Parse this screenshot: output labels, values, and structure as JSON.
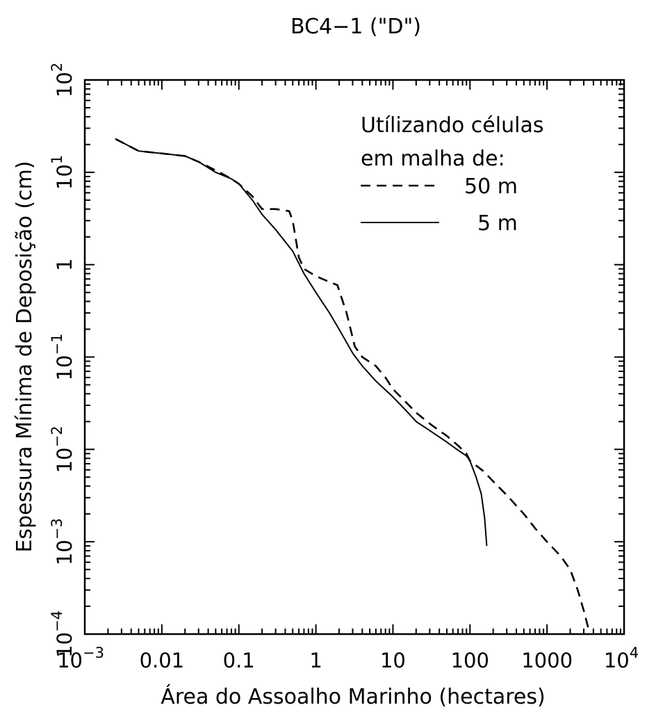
{
  "chart_data": {
    "type": "line",
    "title": "BC4−1 (\"D\")",
    "xlabel": "Área do Assoalho Marinho (hectares)",
    "ylabel": "Espessura Mínima de Deposição (cm)",
    "x_scale": "log",
    "y_scale": "log",
    "xlim": [
      0.001,
      10000
    ],
    "ylim": [
      0.0001,
      100
    ],
    "grid": false,
    "legend_position": "top-right",
    "legend_header": [
      "Utílizando células",
      "em malha de:"
    ],
    "x_ticks": [
      {
        "value": 0.001,
        "base": "10",
        "exp": "−3"
      },
      {
        "value": 0.01,
        "label": "0.01"
      },
      {
        "value": 0.1,
        "label": "0.1"
      },
      {
        "value": 1,
        "label": "1"
      },
      {
        "value": 10,
        "label": "10"
      },
      {
        "value": 100,
        "label": "100"
      },
      {
        "value": 1000,
        "label": "1000"
      },
      {
        "value": 10000,
        "base": "10",
        "exp": "4"
      }
    ],
    "y_ticks": [
      {
        "value": 0.0001,
        "base": "10",
        "exp": "−4"
      },
      {
        "value": 0.001,
        "base": "10",
        "exp": "−3"
      },
      {
        "value": 0.01,
        "base": "10",
        "exp": "−2"
      },
      {
        "value": 0.1,
        "base": "10",
        "exp": "−1"
      },
      {
        "value": 1,
        "label": "1"
      },
      {
        "value": 10,
        "base": "10",
        "exp": "1"
      },
      {
        "value": 100,
        "base": "10",
        "exp": "2"
      }
    ],
    "series": [
      {
        "name": "50 m",
        "style": "dashed",
        "x": [
          0.0025,
          0.005,
          0.01,
          0.02,
          0.03,
          0.05,
          0.08,
          0.1,
          0.15,
          0.2,
          0.3,
          0.45,
          0.5,
          0.6,
          0.7,
          1.0,
          1.5,
          1.9,
          2.5,
          3.2,
          4,
          6,
          8,
          10,
          15,
          20,
          30,
          50,
          70,
          90,
          100,
          150,
          200,
          300,
          500,
          700,
          1000,
          1500,
          2000,
          2500,
          3000,
          3600
        ],
        "values": [
          23,
          17,
          16,
          15,
          13,
          10.5,
          8.5,
          7.5,
          5.5,
          4,
          4,
          3.8,
          3,
          1.2,
          0.9,
          0.75,
          0.65,
          0.6,
          0.3,
          0.13,
          0.1,
          0.08,
          0.06,
          0.045,
          0.032,
          0.025,
          0.019,
          0.014,
          0.011,
          0.009,
          0.0075,
          0.0058,
          0.0045,
          0.0032,
          0.002,
          0.0014,
          0.001,
          0.0007,
          0.0005,
          0.0003,
          0.00018,
          0.0001
        ]
      },
      {
        "name": "5 m",
        "style": "solid",
        "x": [
          0.0025,
          0.005,
          0.01,
          0.02,
          0.03,
          0.05,
          0.08,
          0.1,
          0.15,
          0.2,
          0.3,
          0.5,
          0.7,
          1.0,
          1.5,
          2,
          3,
          4,
          6,
          10,
          15,
          20,
          30,
          50,
          70,
          90,
          100,
          120,
          140,
          155,
          165
        ],
        "values": [
          23,
          17,
          16,
          15,
          13,
          10,
          8.5,
          7.5,
          5,
          3.5,
          2.4,
          1.4,
          0.8,
          0.5,
          0.3,
          0.2,
          0.11,
          0.08,
          0.055,
          0.037,
          0.026,
          0.02,
          0.016,
          0.012,
          0.0098,
          0.0085,
          0.0075,
          0.005,
          0.0033,
          0.0018,
          0.0009
        ]
      }
    ]
  }
}
